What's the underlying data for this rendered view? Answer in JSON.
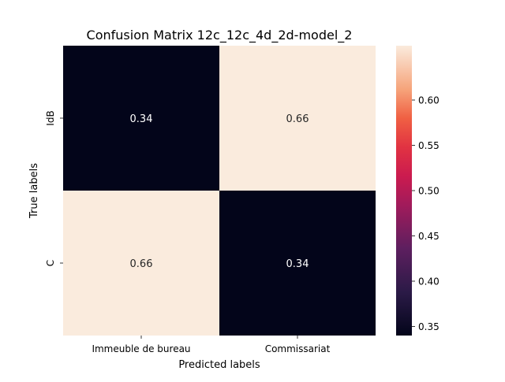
{
  "chart_data": {
    "type": "heatmap",
    "title": "Confusion Matrix 12c_12c_4d_2d-model_2",
    "xlabel": "Predicted labels",
    "ylabel": "True labels",
    "x_categories": [
      "Immeuble de bureau",
      "Commissariat"
    ],
    "y_categories": [
      "IdB",
      "C"
    ],
    "values": [
      [
        0.34,
        0.66
      ],
      [
        0.66,
        0.34
      ]
    ],
    "cell_labels": [
      [
        "0.34",
        "0.66"
      ],
      [
        "0.66",
        "0.34"
      ]
    ],
    "colorbar": {
      "colormap": "rocket",
      "vmin": 0.34,
      "vmax": 0.66,
      "ticks": [
        "0.35",
        "0.40",
        "0.45",
        "0.50",
        "0.55",
        "0.60"
      ],
      "tick_values": [
        0.35,
        0.4,
        0.45,
        0.5,
        0.55,
        0.6
      ]
    },
    "grid": false,
    "legend": "none"
  }
}
